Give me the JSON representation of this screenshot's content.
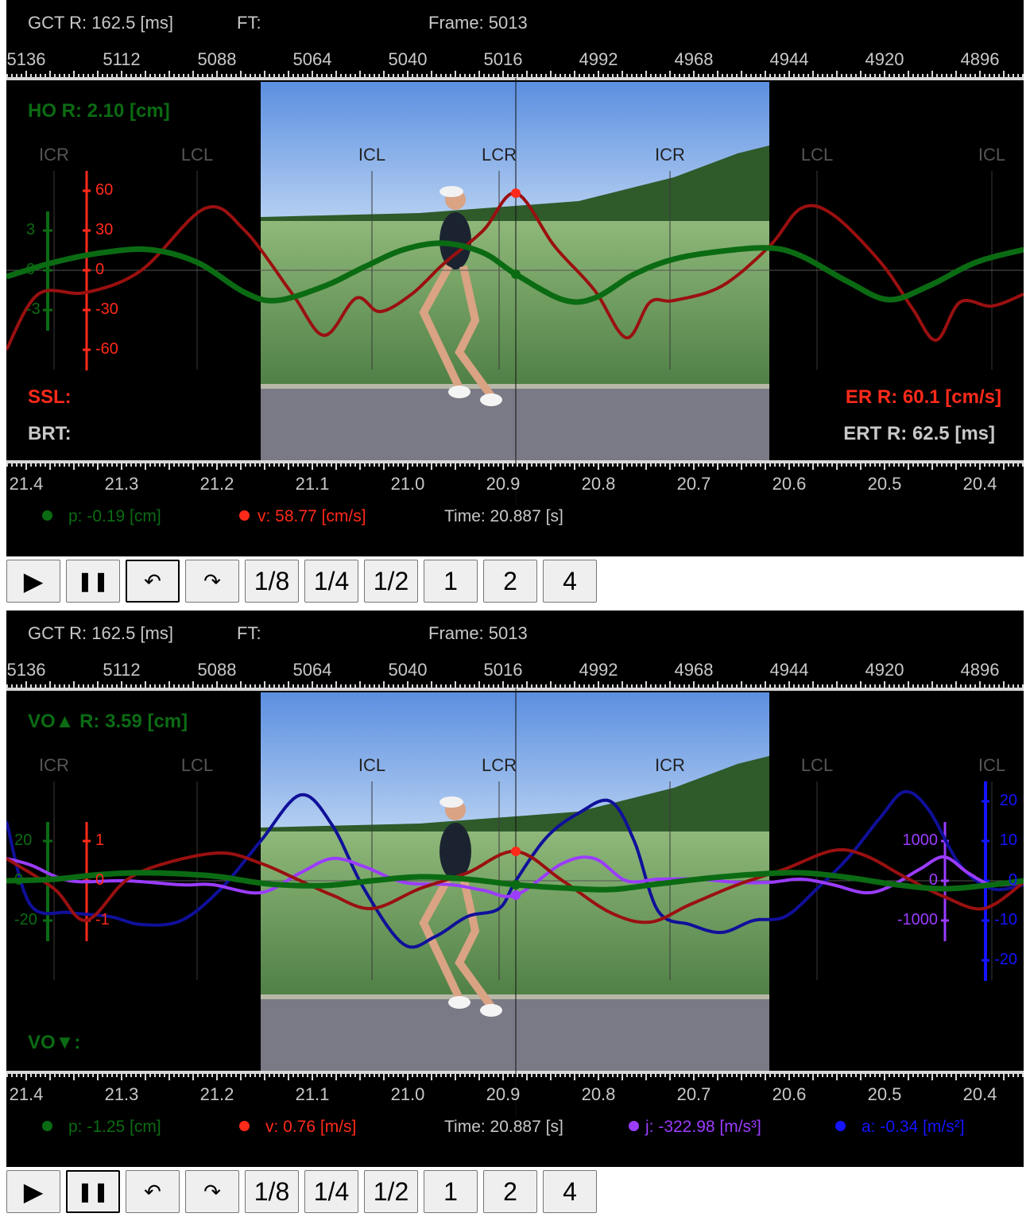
{
  "colors": {
    "green": "#0b6b13",
    "red": "#ff2a1a",
    "darkred": "#9a1010",
    "gray": "#c8c8c8",
    "purple": "#9b3cff",
    "blue": "#1414ff",
    "navy": "#10109a",
    "eventgray": "#666666"
  },
  "panels": [
    {
      "header": {
        "gct": "GCT R: 162.5 [ms]",
        "ft": "FT:",
        "frame": "Frame: 5013"
      },
      "frame_ticks": [
        "5136",
        "5112",
        "5088",
        "5064",
        "5040",
        "5016",
        "4992",
        "4968",
        "4944",
        "4920",
        "4896"
      ],
      "time_ticks": [
        "21.4",
        "21.3",
        "21.2",
        "21.1",
        "21.0",
        "20.9",
        "20.8",
        "20.7",
        "20.6",
        "20.5",
        "20.4"
      ],
      "events": [
        "ICR",
        "LCL",
        "ICL",
        "LCR",
        "ICR",
        "LCL",
        "ICL"
      ],
      "top_left_label": "HO R: 2.10 [cm]",
      "bottom_left_labels": [
        "SSL:",
        "BRT:"
      ],
      "bottom_right_labels": [
        "ER R: 60.1 [cm/s]",
        "ERT R: 62.5 [ms]"
      ],
      "green_axis": [
        "3",
        "0",
        "-3"
      ],
      "red_axis": [
        "60",
        "30",
        "0",
        "-30",
        "-60"
      ],
      "readouts": {
        "p": "p: -0.19 [cm]",
        "v": "v: 58.77 [cm/s]",
        "time": "Time: 20.887 [s]"
      }
    },
    {
      "header": {
        "gct": "GCT R: 162.5 [ms]",
        "ft": "FT:",
        "frame": "Frame: 5013"
      },
      "frame_ticks": [
        "5136",
        "5112",
        "5088",
        "5064",
        "5040",
        "5016",
        "4992",
        "4968",
        "4944",
        "4920",
        "4896"
      ],
      "time_ticks": [
        "21.4",
        "21.3",
        "21.2",
        "21.1",
        "21.0",
        "20.9",
        "20.8",
        "20.7",
        "20.6",
        "20.5",
        "20.4"
      ],
      "events": [
        "ICR",
        "LCL",
        "ICL",
        "LCR",
        "ICR",
        "LCL",
        "ICL"
      ],
      "top_left_label": "VO▲ R: 3.59 [cm]",
      "bottom_left_label": "VO▼:",
      "green_axis": [
        "20",
        "0",
        "-20"
      ],
      "red_axis": [
        "1",
        "0",
        "-1"
      ],
      "purple_axis": [
        "1000",
        "0",
        "-1000"
      ],
      "blue_axis": [
        "20",
        "10",
        "0",
        "-10",
        "-20"
      ],
      "readouts": {
        "p": "p: -1.25 [cm]",
        "v": "v: 0.76 [m/s]",
        "time": "Time: 20.887 [s]",
        "j": "j: -322.98 [m/s³]",
        "a": "a: -0.34 [m/s²]"
      }
    }
  ],
  "controls": [
    "▶",
    "❚❚",
    "↶",
    "↷",
    "1/8",
    "1/4",
    "1/2",
    "1",
    "2",
    "4"
  ],
  "active_control": {
    "0": 2,
    "1": 1
  }
}
